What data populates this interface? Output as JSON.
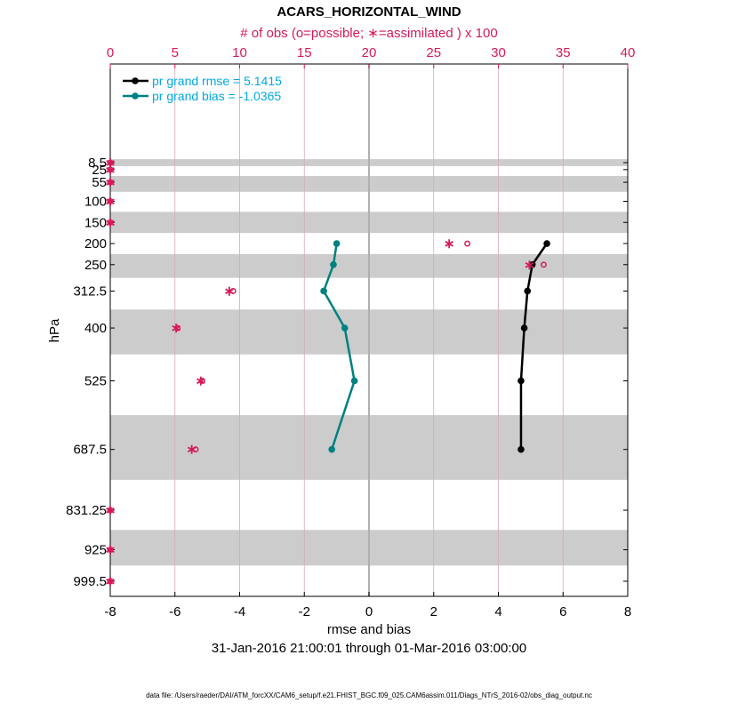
{
  "chart_data": {
    "type": "line",
    "title": "ACARS_HORIZONTAL_WIND",
    "top_label": "# of obs (o=possible; ∗=assimilated ) x 100",
    "xlabel": "rmse and bias",
    "ylabel": "hPa",
    "date_range": "31-Jan-2016 21:00:01 through 01-Mar-2016 03:00:00",
    "footnote": "data file: /Users/raeder/DAI/ATM_forcXX/CAM6_setup/f.e21.FHIST_BGC.f09_025.CAM6assim.011/Diags_NTrS_2016-02/obs_diag_output.nc",
    "xlim": [
      -8,
      8
    ],
    "xticks": [
      "-8",
      "-6",
      "-4",
      "-2",
      "0",
      "2",
      "4",
      "6",
      "8"
    ],
    "top_xlim": [
      0,
      40
    ],
    "top_xticks": [
      "0",
      "5",
      "10",
      "15",
      "20",
      "25",
      "30",
      "35",
      "40"
    ],
    "levels": [
      8.5,
      25,
      55,
      100,
      150,
      200,
      250,
      312.5,
      400,
      525,
      687.5,
      831.25,
      925,
      999.5
    ],
    "level_labels": [
      "8.5",
      "25",
      "55",
      "100",
      "150",
      "200",
      "250",
      "312.5",
      "400",
      "525",
      "687.5",
      "831.25",
      "925",
      "999.5"
    ],
    "series": [
      {
        "name": "pr grand rmse = 5.1415",
        "color": "#000000",
        "levels": [
          200,
          250,
          312.5,
          400,
          525,
          687.5
        ],
        "values": [
          5.5,
          5.05,
          4.9,
          4.8,
          4.7,
          4.7
        ]
      },
      {
        "name": "pr grand bias = -1.0365",
        "color": "#008080",
        "levels": [
          200,
          250,
          312.5,
          400,
          525,
          687.5
        ],
        "values": [
          -1.0,
          -1.1,
          -1.4,
          -0.75,
          -0.45,
          -1.15
        ]
      }
    ],
    "obs_possible": {
      "levels": [
        8.5,
        25,
        55,
        100,
        150,
        200,
        250,
        312.5,
        400,
        525,
        687.5,
        831.25,
        925,
        999.5
      ],
      "values": [
        0,
        0,
        0,
        0,
        0,
        27.6,
        33.5,
        9.5,
        5.2,
        7.1,
        6.6,
        0,
        0,
        0
      ]
    },
    "obs_assimilated": {
      "levels": [
        8.5,
        25,
        55,
        100,
        150,
        200,
        250,
        312.5,
        400,
        525,
        687.5,
        831.25,
        925,
        999.5
      ],
      "values": [
        0,
        0,
        0,
        0,
        0,
        26.2,
        32.4,
        9.2,
        5.1,
        7.0,
        6.3,
        0,
        0,
        0
      ]
    }
  }
}
